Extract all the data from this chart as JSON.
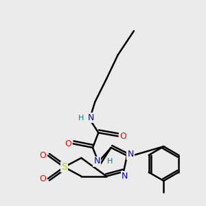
{
  "bg_color": "#ebebeb",
  "atom_colors": {
    "C": "#000000",
    "N": "#0000cc",
    "O": "#ff0000",
    "S": "#cccc00",
    "H": "#008080"
  },
  "bond_color": "#000000",
  "bond_width": 1.8,
  "figsize": [
    3.0,
    3.0
  ],
  "dpi": 100,
  "xlim": [
    0,
    9
  ],
  "ylim": [
    0,
    9
  ]
}
